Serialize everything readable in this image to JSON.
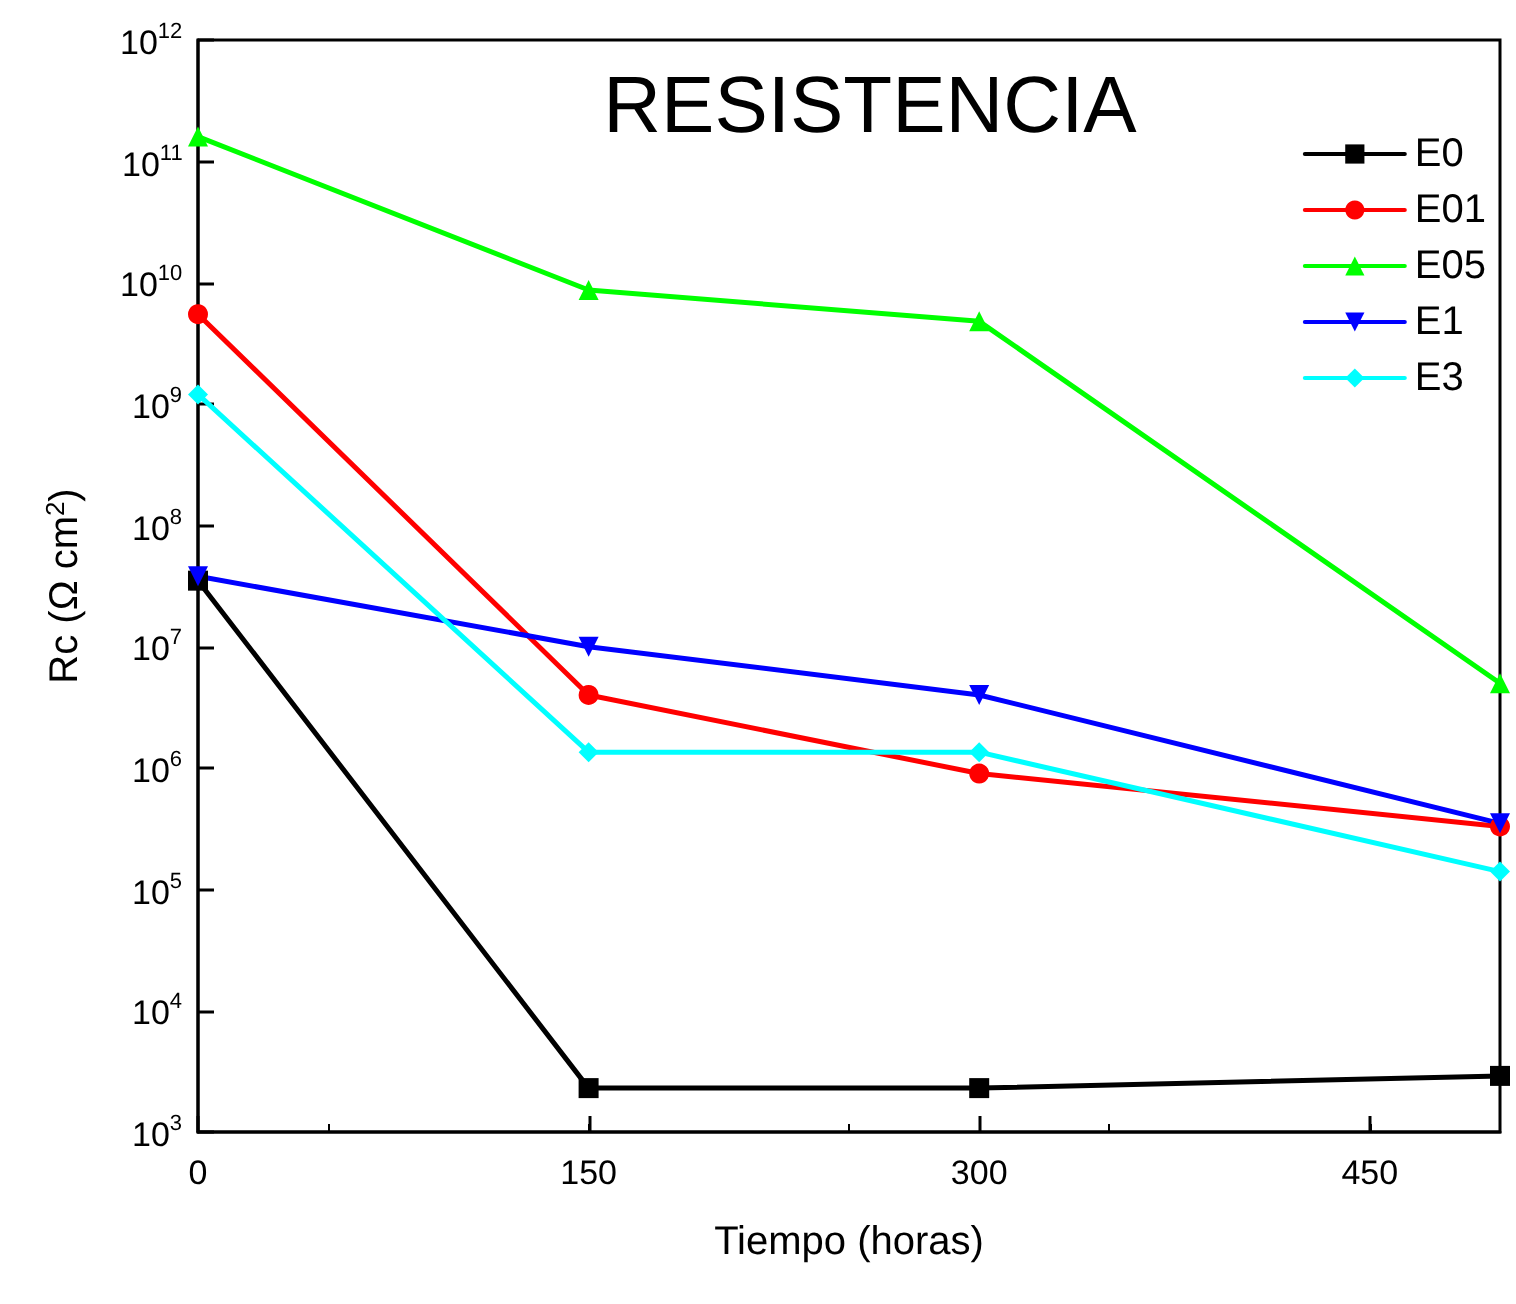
{
  "chart_data": {
    "type": "line",
    "title": "RESISTENCIA",
    "xlabel": "Tiempo (horas)",
    "ylabel": "Rc (Ω cm$^{2}$)",
    "x": [
      0,
      150,
      300,
      500
    ],
    "series": [
      {
        "name": "E0",
        "color": "#000000",
        "marker": "square",
        "values": [
          35000000,
          2300,
          2300,
          2900
        ]
      },
      {
        "name": "E01",
        "color": "#ff0000",
        "marker": "circle",
        "values": [
          5500000000,
          4000000,
          900000,
          330000
        ]
      },
      {
        "name": "E05",
        "color": "#00ff00",
        "marker": "triangle",
        "values": [
          160000000000,
          8700000000,
          4800000000,
          5000000
        ]
      },
      {
        "name": "E1",
        "color": "#0000ff",
        "marker": "triangle_down",
        "values": [
          38000000,
          10000000,
          4000000,
          350000
        ]
      },
      {
        "name": "E3",
        "color": "#00ffff",
        "marker": "diamond",
        "values": [
          1200000000,
          1350000,
          1350000,
          140000
        ]
      }
    ],
    "log": "y",
    "xlim": [
      0,
      500
    ],
    "xticks": [
      0,
      150,
      300,
      450
    ],
    "ylim": [
      1000,
      1000000000000
    ],
    "yticks": [
      {
        "value": 1000,
        "label": "10$^{3}$"
      },
      {
        "value": 10000,
        "label": "10$^{4}$"
      },
      {
        "value": 100000,
        "label": "10$^{5}$"
      },
      {
        "value": 1000000,
        "label": "10$^{6}$"
      },
      {
        "value": 10000000,
        "label": "10$^{7}$"
      },
      {
        "value": 100000000,
        "label": "10$^{8}$"
      },
      {
        "value": 1000000000,
        "label": "10$^{9}$"
      },
      {
        "value": 10000000000,
        "label": "10$^{10}$"
      },
      {
        "value": 100000000000,
        "label": "10$^{11}$"
      },
      {
        "value": 1000000000000,
        "label": "10$^{12}$"
      }
    ],
    "grid": false,
    "legend": "top right",
    "line_style": "solid"
  }
}
